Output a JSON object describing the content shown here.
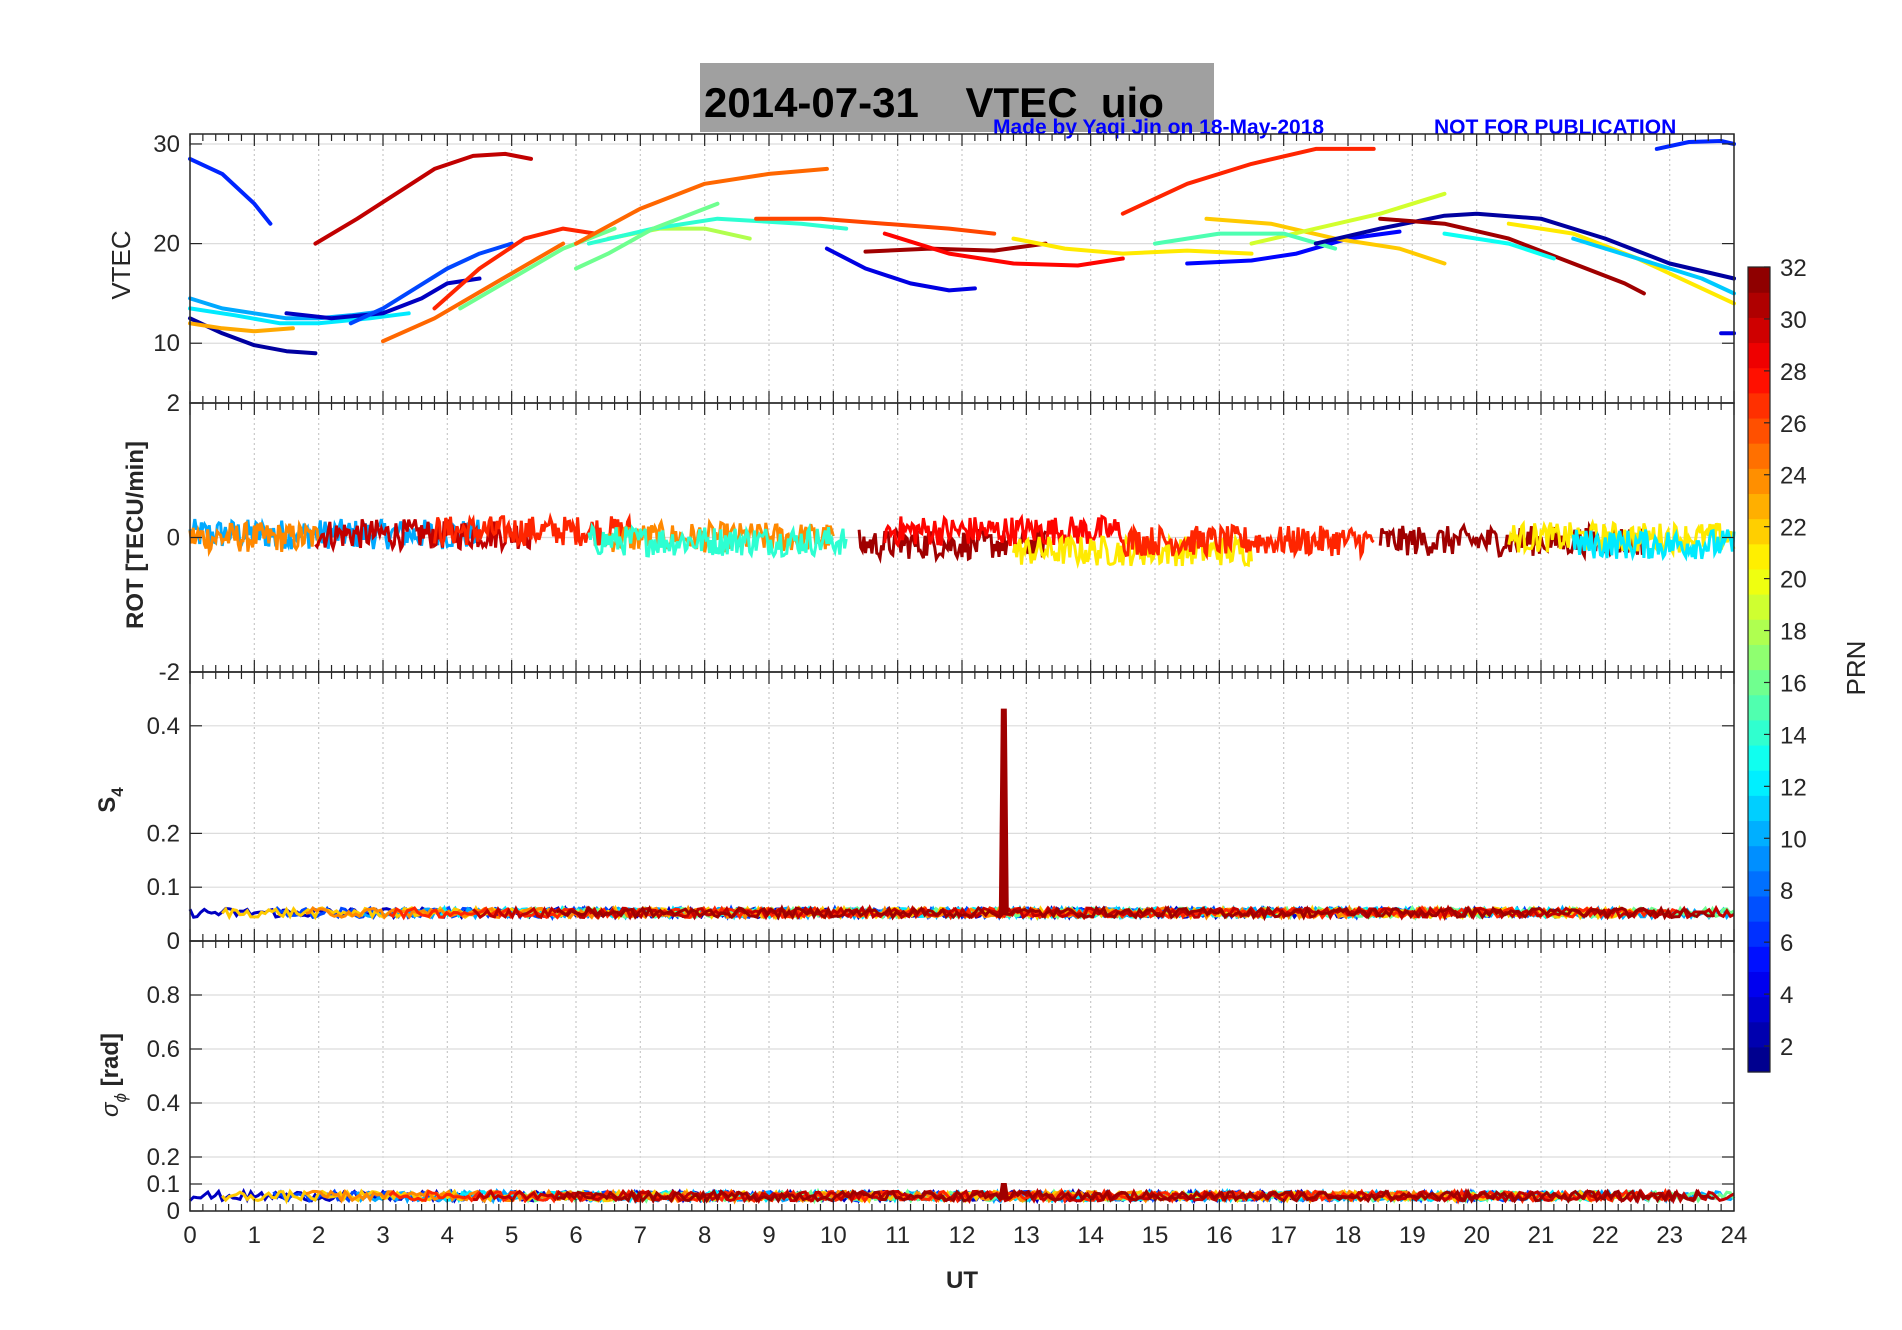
{
  "title": "2014-07-31    VTEC  uio",
  "credit": "Made by Yaqi Jin on 18-May-2018",
  "notice": "NOT FOR PUBLICATION",
  "xlabel": "UT",
  "colors": {
    "title_bg": "#a0a0a0",
    "credit": "#0000ff",
    "grid": "#d8d8d8",
    "axis": "#262626"
  },
  "chart_data": [
    {
      "type": "line",
      "name": "VTEC",
      "ylabel": "VTEC",
      "xlim": [
        0,
        24
      ],
      "ylim": [
        4,
        31
      ],
      "yticks": [
        "10",
        "20",
        "30"
      ],
      "ytick_values": [
        10,
        20,
        30
      ],
      "series": [
        {
          "prn": 6,
          "x": [
            0,
            0.5,
            1.0,
            1.25
          ],
          "y": [
            28.5,
            27.0,
            24.0,
            22.0
          ]
        },
        {
          "prn": 2,
          "x": [
            0,
            0.5,
            1.0,
            1.5,
            1.95
          ],
          "y": [
            12.5,
            11.0,
            9.8,
            9.2,
            9.0
          ]
        },
        {
          "prn": 10,
          "x": [
            0,
            0.5,
            1.0,
            1.5,
            2.0,
            2.5,
            3.0
          ],
          "y": [
            14.5,
            13.5,
            13.0,
            12.5,
            12.5,
            12.8,
            13.2
          ]
        },
        {
          "prn": 12,
          "x": [
            0,
            0.7,
            1.4,
            2.0,
            2.8,
            3.4
          ],
          "y": [
            13.5,
            12.8,
            12.0,
            12.0,
            12.5,
            13.0
          ]
        },
        {
          "prn": 23,
          "x": [
            0,
            0.5,
            1.0,
            1.6
          ],
          "y": [
            12.0,
            11.5,
            11.2,
            11.5
          ]
        },
        {
          "prn": 3,
          "x": [
            1.5,
            2.2,
            3.0,
            3.6,
            4.0,
            4.5
          ],
          "y": [
            13.0,
            12.5,
            13.0,
            14.5,
            16.0,
            16.5
          ]
        },
        {
          "prn": 7,
          "x": [
            2.5,
            3.0,
            3.5,
            4.0,
            4.5,
            5.0
          ],
          "y": [
            12.0,
            13.5,
            15.5,
            17.5,
            19.0,
            20.0
          ]
        },
        {
          "prn": 30,
          "x": [
            1.95,
            2.6,
            3.2,
            3.8,
            4.4,
            4.9,
            5.3
          ],
          "y": [
            20.0,
            22.5,
            25.0,
            27.5,
            28.8,
            29.0,
            28.5
          ]
        },
        {
          "prn": 25,
          "x": [
            3.0,
            3.8,
            4.6,
            5.4,
            5.8
          ],
          "y": [
            10.2,
            12.5,
            15.5,
            18.5,
            20.0
          ]
        },
        {
          "prn": 27,
          "x": [
            3.8,
            4.5,
            5.2,
            5.8,
            6.3
          ],
          "y": [
            13.5,
            17.5,
            20.5,
            21.5,
            21.0
          ]
        },
        {
          "prn": 16,
          "x": [
            4.2,
            5.0,
            5.8,
            6.6
          ],
          "y": [
            13.5,
            16.5,
            19.5,
            21.5
          ]
        },
        {
          "prn": 25,
          "x": [
            6.0,
            7.0,
            8.0,
            9.0,
            9.9
          ],
          "y": [
            20.0,
            23.5,
            26.0,
            27.0,
            27.5
          ]
        },
        {
          "prn": 18,
          "x": [
            6.5,
            7.3,
            8.0,
            8.7
          ],
          "y": [
            20.5,
            21.5,
            21.5,
            20.5
          ]
        },
        {
          "prn": 14,
          "x": [
            6.2,
            7.2,
            8.2,
            9.5,
            10.2
          ],
          "y": [
            20.0,
            21.5,
            22.5,
            22.0,
            21.5
          ]
        },
        {
          "prn": 16,
          "x": [
            6.0,
            6.5,
            7.2,
            8.2
          ],
          "y": [
            17.5,
            19.0,
            21.5,
            24.0
          ]
        },
        {
          "prn": 26,
          "x": [
            8.8,
            9.8,
            10.8,
            11.8,
            12.5
          ],
          "y": [
            22.5,
            22.5,
            22.0,
            21.5,
            21.0
          ]
        },
        {
          "prn": 4,
          "x": [
            9.9,
            10.5,
            11.2,
            11.8,
            12.2
          ],
          "y": [
            19.5,
            17.5,
            16.0,
            15.3,
            15.5
          ]
        },
        {
          "prn": 31,
          "x": [
            10.5,
            11.5,
            12.5,
            13.3
          ],
          "y": [
            19.2,
            19.5,
            19.3,
            20.0
          ]
        },
        {
          "prn": 28,
          "x": [
            10.8,
            11.8,
            12.8,
            13.8,
            14.5
          ],
          "y": [
            21.0,
            19.0,
            18.0,
            17.8,
            18.5
          ]
        },
        {
          "prn": 21,
          "x": [
            12.8,
            13.6,
            14.5,
            15.5,
            16.5
          ],
          "y": [
            20.5,
            19.5,
            19.0,
            19.3,
            19.0
          ]
        },
        {
          "prn": 27,
          "x": [
            14.5,
            15.5,
            16.5,
            17.5,
            18.4
          ],
          "y": [
            23.0,
            26.0,
            28.0,
            29.5,
            29.5
          ]
        },
        {
          "prn": 5,
          "x": [
            15.5,
            16.5,
            17.2,
            18.0,
            18.8
          ],
          "y": [
            18.0,
            18.3,
            19.0,
            20.5,
            21.2
          ]
        },
        {
          "prn": 22,
          "x": [
            15.8,
            16.8,
            17.8,
            18.8,
            19.5
          ],
          "y": [
            22.5,
            22.0,
            20.5,
            19.5,
            18.0
          ]
        },
        {
          "prn": 19,
          "x": [
            16.5,
            17.5,
            18.5,
            19.5
          ],
          "y": [
            20.0,
            21.5,
            23.0,
            25.0
          ]
        },
        {
          "prn": 15,
          "x": [
            15.0,
            16.0,
            17.0,
            17.8
          ],
          "y": [
            20.0,
            21.0,
            21.0,
            19.5
          ]
        },
        {
          "prn": 2,
          "x": [
            17.5,
            18.5,
            19.5,
            20.0,
            21.0,
            22.0,
            23.0,
            24.0
          ],
          "y": [
            20.0,
            21.5,
            22.8,
            23.0,
            22.5,
            20.5,
            18.0,
            16.5
          ]
        },
        {
          "prn": 31,
          "x": [
            18.5,
            19.5,
            20.5,
            21.5,
            22.3,
            22.6
          ],
          "y": [
            22.5,
            22.0,
            20.5,
            18.0,
            16.0,
            15.0
          ]
        },
        {
          "prn": 13,
          "x": [
            19.5,
            20.5,
            21.2
          ],
          "y": [
            21.0,
            20.0,
            18.5
          ]
        },
        {
          "prn": 21,
          "x": [
            20.5,
            21.5,
            22.5,
            23.5,
            24.0
          ],
          "y": [
            22.0,
            21.0,
            18.5,
            15.5,
            14.0
          ]
        },
        {
          "prn": 11,
          "x": [
            21.5,
            22.5,
            23.5,
            24.0
          ],
          "y": [
            20.5,
            18.5,
            16.5,
            15.0
          ]
        },
        {
          "prn": 6,
          "x": [
            22.8,
            23.3,
            23.8,
            24.0
          ],
          "y": [
            29.5,
            30.2,
            30.3,
            30.0
          ]
        },
        {
          "prn": 4,
          "x": [
            23.8,
            24.0
          ],
          "y": [
            11.0,
            11.0
          ]
        }
      ]
    },
    {
      "type": "scatter",
      "name": "ROT",
      "ylabel": "ROT [TECU/min]",
      "xlim": [
        0,
        24
      ],
      "ylim": [
        -2,
        2
      ],
      "yticks": [
        "-2",
        "0",
        "2"
      ],
      "ytick_values": [
        -2,
        0,
        2
      ],
      "noise_band": [
        -0.5,
        0.5
      ],
      "segments": [
        {
          "prn": 10,
          "x": [
            0,
            4.5
          ],
          "level": 0.05
        },
        {
          "prn": 24,
          "x": [
            0,
            2.0
          ],
          "level": 0.0
        },
        {
          "prn": 30,
          "x": [
            1.95,
            5.3
          ],
          "level": 0.05
        },
        {
          "prn": 27,
          "x": [
            3.8,
            6.9
          ],
          "level": 0.1
        },
        {
          "prn": 24,
          "x": [
            6.5,
            10.0
          ],
          "level": 0.0
        },
        {
          "prn": 14,
          "x": [
            6.2,
            10.2
          ],
          "level": -0.05
        },
        {
          "prn": 31,
          "x": [
            10.4,
            13.3
          ],
          "level": -0.1
        },
        {
          "prn": 28,
          "x": [
            10.8,
            14.5
          ],
          "level": 0.1
        },
        {
          "prn": 21,
          "x": [
            12.8,
            16.5
          ],
          "level": -0.2
        },
        {
          "prn": 27,
          "x": [
            14.5,
            18.4
          ],
          "level": -0.05
        },
        {
          "prn": 31,
          "x": [
            18.5,
            22.6
          ],
          "level": -0.05
        },
        {
          "prn": 21,
          "x": [
            20.5,
            24.0
          ],
          "level": 0.0
        },
        {
          "prn": 12,
          "x": [
            21.5,
            24.0
          ],
          "level": -0.1
        }
      ]
    },
    {
      "type": "scatter",
      "name": "S4",
      "ylabel": "S",
      "ylabel_sub": "4",
      "xlim": [
        0,
        24
      ],
      "ylim": [
        0,
        0.5
      ],
      "yticks": [
        "0",
        "0.1",
        "0.2",
        "0.4"
      ],
      "ytick_values": [
        0,
        0.1,
        0.2,
        0.4
      ],
      "baseline": 0.05,
      "spike": {
        "prn": 31,
        "x": 12.65,
        "y": 0.43
      }
    },
    {
      "type": "scatter",
      "name": "sigma_phi",
      "ylabel": "σ",
      "ylabel_sub": "ϕ",
      "ylabel_suffix": " [rad]",
      "xlim": [
        0,
        24
      ],
      "ylim": [
        0,
        1
      ],
      "yticks": [
        "0",
        "0.1",
        "0.2",
        "0.4",
        "0.6",
        "0.8"
      ],
      "ytick_values": [
        0,
        0.1,
        0.2,
        0.4,
        0.6,
        0.8
      ],
      "baseline": 0.05,
      "spike": {
        "prn": 31,
        "x": 12.65,
        "y": 0.1
      }
    }
  ],
  "colorbar": {
    "label": "PRN",
    "range": [
      1,
      32
    ],
    "ticks": [
      "2",
      "4",
      "6",
      "8",
      "10",
      "12",
      "14",
      "16",
      "18",
      "20",
      "22",
      "24",
      "26",
      "28",
      "30",
      "32"
    ],
    "tick_values": [
      2,
      4,
      6,
      8,
      10,
      12,
      14,
      16,
      18,
      20,
      22,
      24,
      26,
      28,
      30,
      32
    ]
  },
  "xticks": [
    "0",
    "1",
    "2",
    "3",
    "4",
    "5",
    "6",
    "7",
    "8",
    "9",
    "10",
    "11",
    "12",
    "13",
    "14",
    "15",
    "16",
    "17",
    "18",
    "19",
    "20",
    "21",
    "22",
    "23",
    "24"
  ]
}
